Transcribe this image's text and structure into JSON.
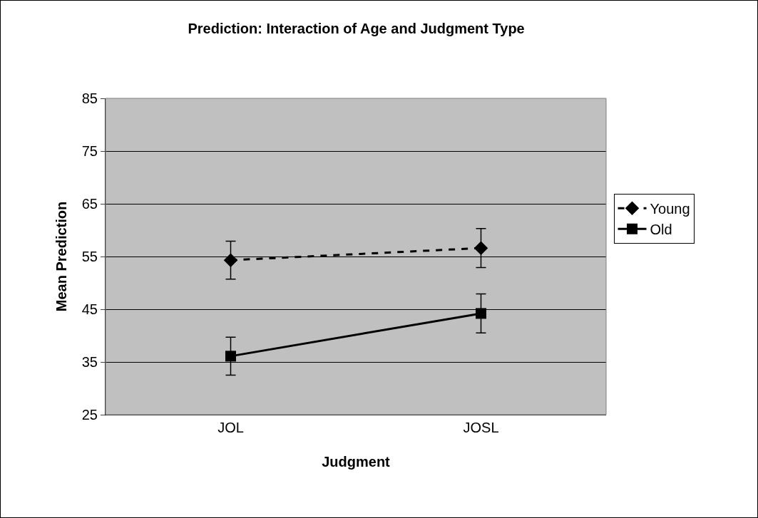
{
  "chart_data": {
    "type": "line",
    "title": "Prediction: Interaction of Age and Judgment Type",
    "xlabel": "Judgment",
    "ylabel": "Mean Prediction",
    "categories": [
      "JOL",
      "JOSL"
    ],
    "series": [
      {
        "name": "Young",
        "color": "#000000",
        "values": [
          54.3,
          56.6
        ],
        "errors": [
          3.6,
          3.7
        ],
        "marker": "diamond",
        "line_style": "dashed"
      },
      {
        "name": "Old",
        "color": "#000000",
        "values": [
          36.1,
          44.2
        ],
        "errors": [
          3.6,
          3.7
        ],
        "marker": "square",
        "line_style": "solid"
      }
    ],
    "ylim": [
      25,
      85
    ],
    "yticks": [
      25,
      35,
      45,
      55,
      65,
      75,
      85
    ],
    "grid": "y",
    "legend": "right"
  }
}
